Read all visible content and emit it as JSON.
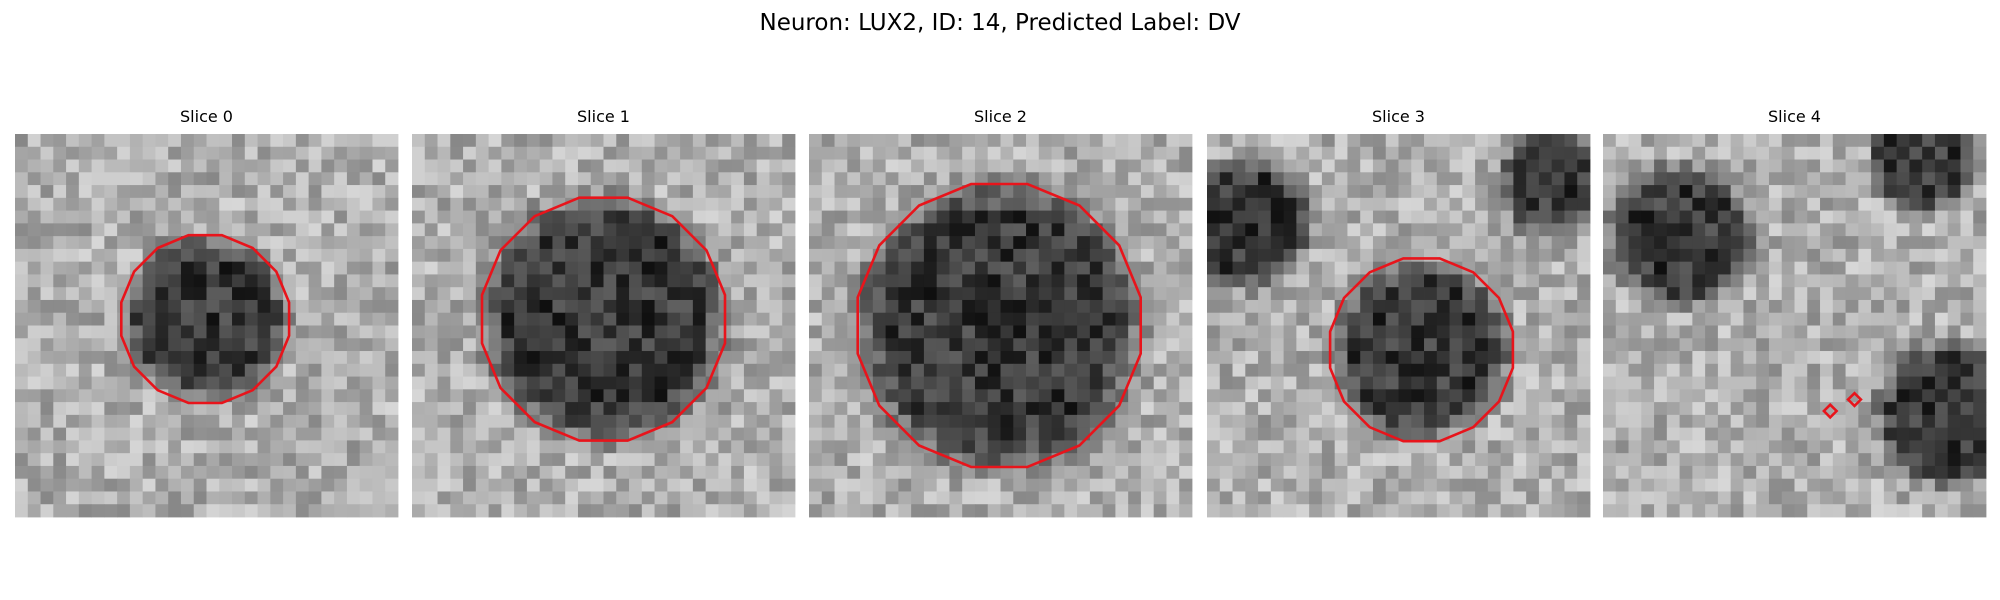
{
  "title": "Neuron: LUX2, ID: 14, Predicted Label: DV",
  "panels": [
    {
      "title": "Slice 0"
    },
    {
      "title": "Slice 1"
    },
    {
      "title": "Slice 2"
    },
    {
      "title": "Slice 3"
    },
    {
      "title": "Slice 4"
    }
  ]
}
